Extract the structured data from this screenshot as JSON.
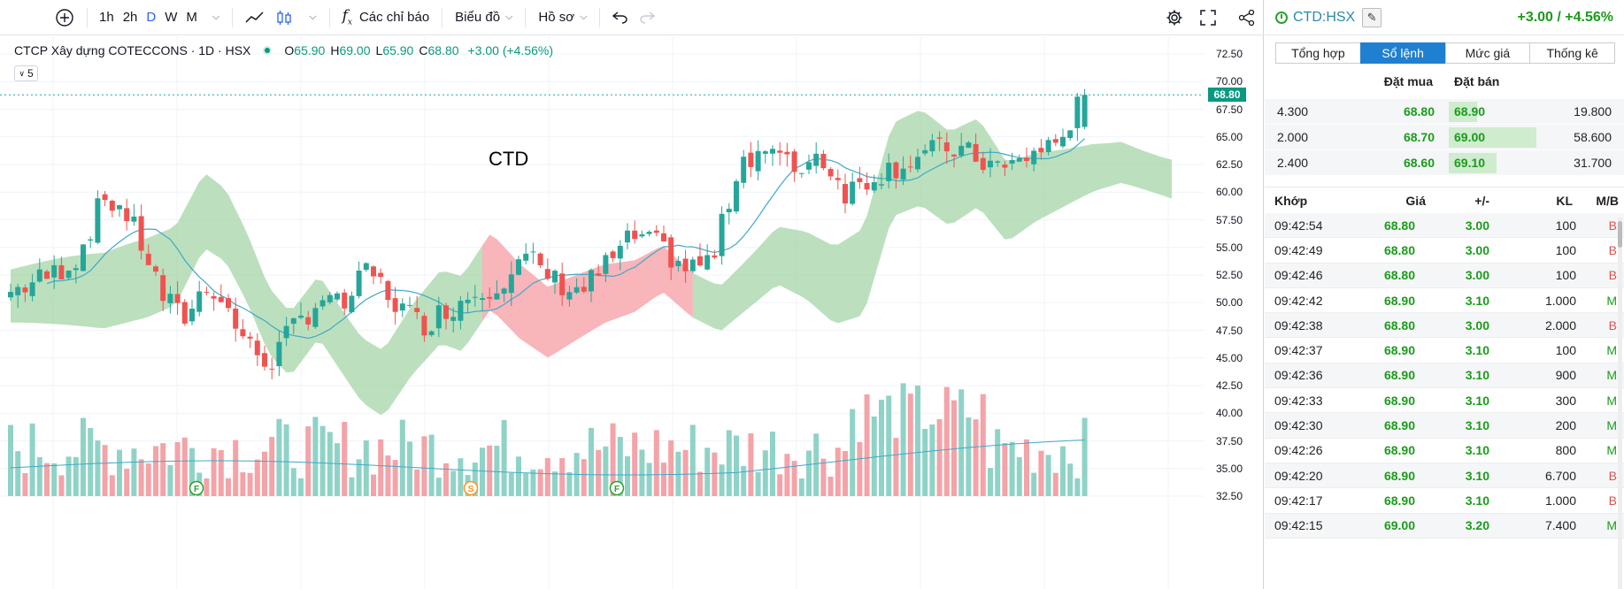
{
  "toolbar": {
    "add_icon": "plus-circle-icon",
    "intervals": [
      "1h",
      "2h",
      "D",
      "W",
      "M"
    ],
    "active_interval": "D",
    "indicators_label": "Các chỉ báo",
    "chart_label": "Biểu đồ",
    "profile_label": "Hồ sơ"
  },
  "legend": {
    "title": "CTCP Xây dựng COTECCONS · 1D · HSX",
    "o_label": "O",
    "o": "65.90",
    "h_label": "H",
    "h": "69.00",
    "l_label": "L",
    "l": "65.90",
    "c_label": "C",
    "c": "68.80",
    "change": "+3.00 (+4.56%)",
    "collapse_count": "5"
  },
  "chart_label": "CTD",
  "last_price": "68.80",
  "markers": [
    "F",
    "S",
    "F"
  ],
  "chart_data": {
    "type": "candlestick",
    "price_ticks": [
      "72.50",
      "70.00",
      "67.50",
      "65.00",
      "62.50",
      "60.00",
      "57.50",
      "55.00",
      "52.50",
      "50.00",
      "47.50",
      "45.00",
      "42.50",
      "40.00",
      "37.50",
      "35.00",
      "32.50"
    ],
    "ylim": [
      32.5,
      73.5
    ],
    "last_close": 68.8,
    "colors": {
      "up": "#26a69a",
      "down": "#ef5350",
      "vol_up": "#8fd3c7",
      "vol_down": "#f4a3a8",
      "cloud_up": "#a5d6a7",
      "cloud_down": "#f7a8ae",
      "ma": "#3fa9c9"
    }
  },
  "side": {
    "symbol": "CTD:HSX",
    "change": "+3.00 / +4.56%",
    "tabs": [
      "Tổng hợp",
      "Sổ lệnh",
      "Mức giá",
      "Thống kê"
    ],
    "active_tab": "Sổ lệnh",
    "orderbook_header": {
      "bid": "Đặt mua",
      "ask": "Đặt bán"
    },
    "orderbook": [
      {
        "bid_vol": "4.300",
        "bid": "68.80",
        "ask": "68.90",
        "ask_vol": "19.800",
        "ask_fill": 0.18
      },
      {
        "bid_vol": "2.000",
        "bid": "68.70",
        "ask": "69.00",
        "ask_vol": "58.600",
        "ask_fill": 0.55
      },
      {
        "bid_vol": "2.400",
        "bid": "68.60",
        "ask": "69.10",
        "ask_vol": "31.700",
        "ask_fill": 0.3
      }
    ],
    "matched_header": {
      "time": "Khớp",
      "price": "Giá",
      "chg": "+/-",
      "vol": "KL",
      "side": "M/B"
    },
    "matched": [
      {
        "time": "09:42:54",
        "price": "68.80",
        "chg": "3.00",
        "vol": "100",
        "side": "B"
      },
      {
        "time": "09:42:49",
        "price": "68.80",
        "chg": "3.00",
        "vol": "100",
        "side": "B"
      },
      {
        "time": "09:42:46",
        "price": "68.80",
        "chg": "3.00",
        "vol": "100",
        "side": "B"
      },
      {
        "time": "09:42:42",
        "price": "68.90",
        "chg": "3.10",
        "vol": "1.000",
        "side": "M"
      },
      {
        "time": "09:42:38",
        "price": "68.80",
        "chg": "3.00",
        "vol": "2.000",
        "side": "B"
      },
      {
        "time": "09:42:37",
        "price": "68.90",
        "chg": "3.10",
        "vol": "100",
        "side": "M"
      },
      {
        "time": "09:42:36",
        "price": "68.90",
        "chg": "3.10",
        "vol": "900",
        "side": "M"
      },
      {
        "time": "09:42:33",
        "price": "68.90",
        "chg": "3.10",
        "vol": "300",
        "side": "M"
      },
      {
        "time": "09:42:30",
        "price": "68.90",
        "chg": "3.10",
        "vol": "200",
        "side": "M"
      },
      {
        "time": "09:42:26",
        "price": "68.90",
        "chg": "3.10",
        "vol": "800",
        "side": "M"
      },
      {
        "time": "09:42:20",
        "price": "68.90",
        "chg": "3.10",
        "vol": "6.700",
        "side": "B"
      },
      {
        "time": "09:42:17",
        "price": "68.90",
        "chg": "3.10",
        "vol": "1.000",
        "side": "B"
      },
      {
        "time": "09:42:15",
        "price": "69.00",
        "chg": "3.20",
        "vol": "7.400",
        "side": "M"
      }
    ]
  }
}
